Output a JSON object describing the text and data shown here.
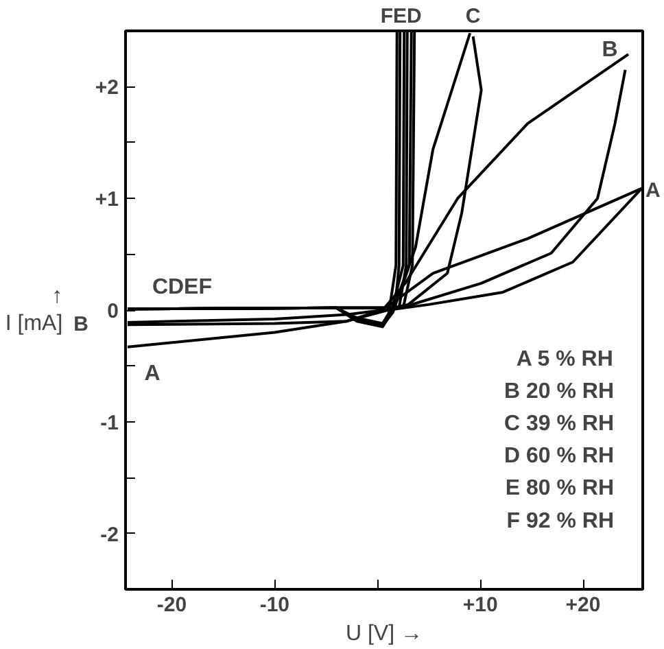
{
  "chart_data": {
    "type": "line",
    "xlabel": "U [V] →",
    "ylabel": "↑ I [mA]",
    "xlim": [
      -24.5,
      25.8
    ],
    "ylim": [
      -2.5,
      2.5
    ],
    "xticks": [
      -20,
      -10,
      {
        "value": 0,
        "label": null
      },
      {
        "value": 10,
        "label": "+10"
      },
      {
        "value": 20,
        "label": "+20"
      }
    ],
    "yticks": [
      {
        "value": -2.5,
        "label": null
      },
      -2,
      {
        "value": -1.5,
        "label": null
      },
      -1,
      {
        "value": -0.5,
        "label": null
      },
      0,
      {
        "value": 0.5,
        "label": null
      },
      {
        "value": 1,
        "label": "+1"
      },
      {
        "value": 1.5,
        "label": null
      },
      {
        "value": 2,
        "label": "+2"
      }
    ],
    "grid": false,
    "line_style": "solid",
    "marker": "none",
    "series": [
      {
        "color": "#000000",
        "x": [
          -24.3,
          -10,
          -3,
          0.5,
          5.4,
          14.6,
          25.7
        ],
        "values": [
          -0.33,
          -0.2,
          -0.1,
          0,
          0.33,
          0.64,
          1.09
        ]
      },
      {
        "color": "#000000",
        "x": [
          1.0,
          5,
          12.2,
          19,
          25.7
        ],
        "values": [
          0,
          0.05,
          0.16,
          0.43,
          1.09
        ]
      },
      {
        "color": "#000000",
        "x": [
          -24.3,
          -10,
          -3,
          0.5,
          2.7,
          7.8,
          14.6,
          24.4
        ],
        "values": [
          -0.11,
          -0.08,
          -0.04,
          0,
          0.24,
          1.0,
          1.67,
          2.29
        ]
      },
      {
        "color": "#000000",
        "x": [
          -24.3,
          -10,
          -3,
          1.0,
          3,
          10.1,
          16.9,
          21.4,
          23.1,
          24.1
        ],
        "values": [
          -0.13,
          -0.12,
          -0.1,
          0,
          0.04,
          0.24,
          0.51,
          1.0,
          1.67,
          2.15
        ]
      },
      {
        "color": "#000000",
        "x": [
          -24.3,
          -4,
          -2,
          0.5,
          1.5,
          3.7,
          5.4,
          9.0
        ],
        "values": [
          0.01,
          0.02,
          -0.1,
          -0.15,
          0,
          0.56,
          1.44,
          2.48
        ]
      },
      {
        "color": "#000000",
        "x": [
          -4,
          1.5,
          3,
          6.8,
          8.2,
          10.1,
          9.3
        ],
        "values": [
          0.02,
          0.02,
          0.05,
          0.33,
          0.87,
          1.97,
          2.45
        ]
      },
      {
        "color": "#000000",
        "x": [
          -24.3,
          -4,
          -2,
          0.5,
          1.5,
          3.1,
          3.3
        ],
        "values": [
          0.01,
          0.02,
          -0.09,
          -0.14,
          -0.02,
          0.4,
          2.5
        ]
      },
      {
        "color": "#000000",
        "x": [
          -24.3,
          -4,
          2.5,
          3.4,
          3.6
        ],
        "values": [
          0.01,
          0.02,
          0.02,
          0.4,
          2.5
        ]
      },
      {
        "color": "#000000",
        "x": [
          -24.3,
          -4,
          -2,
          0.5,
          1.3,
          2.5,
          2.6
        ],
        "values": [
          0.01,
          0.02,
          -0.08,
          -0.13,
          -0.03,
          0.4,
          2.5
        ]
      },
      {
        "color": "#000000",
        "x": [
          -24.3,
          -4,
          2.1,
          2.8,
          2.9
        ],
        "values": [
          0.01,
          0.02,
          0.02,
          0.4,
          2.5
        ]
      },
      {
        "color": "#000000",
        "x": [
          -24.3,
          -4,
          -2,
          0.5,
          1.1,
          1.8,
          1.9
        ],
        "values": [
          0.01,
          0.02,
          -0.07,
          -0.12,
          -0.03,
          0.4,
          2.5
        ]
      },
      {
        "color": "#000000",
        "x": [
          -24.3,
          -4,
          1.7,
          2.1,
          2.2
        ],
        "values": [
          0.01,
          0.02,
          0.02,
          0.4,
          2.5
        ]
      }
    ],
    "annotations": [
      "FED",
      "C",
      "B",
      "A",
      "CDEF",
      "B",
      "A",
      "A 5 % RH",
      "B 20 % RH",
      "C 39 % RH",
      "D 60 % RH",
      "E 80 % RH",
      "F 92 % RH"
    ]
  }
}
